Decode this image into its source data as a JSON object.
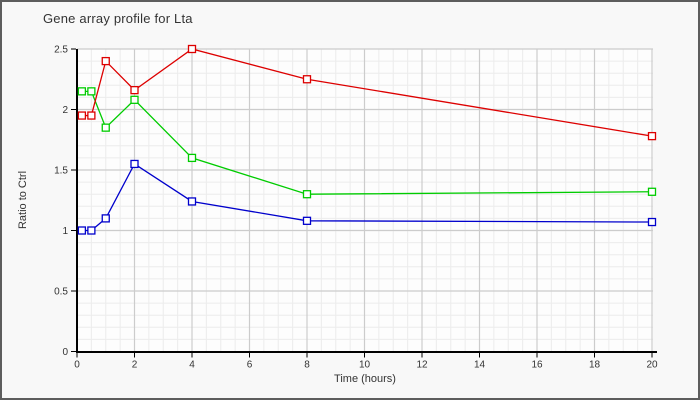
{
  "window": {
    "title": "Gene array profile for Lta"
  },
  "palette": {
    "background": "#f8f8f8",
    "plot_background": "#fdfdfd",
    "frame_border": "#5d5d5d",
    "axis": "#000000",
    "major_grid": "#cccccc",
    "minor_grid": "#ececec",
    "text": "#333333"
  },
  "chart_data": {
    "type": "line",
    "title": "Gene array profile for Lta",
    "xlabel": "Time (hours)",
    "ylabel": "Ratio to Ctrl",
    "xlim": [
      0,
      20
    ],
    "ylim": [
      0,
      2.5
    ],
    "x_ticks": [
      0,
      2,
      4,
      6,
      8,
      10,
      12,
      14,
      16,
      18,
      20
    ],
    "x_tick_labels": [
      "0",
      "2",
      "4",
      "6",
      "8",
      "10",
      "12",
      "14",
      "16",
      "18",
      "20"
    ],
    "y_ticks": [
      0,
      0.5,
      1,
      1.5,
      2,
      2.5
    ],
    "y_tick_labels": [
      "0",
      "0.5",
      "1",
      "1.5",
      "2",
      "2.5"
    ],
    "minor_x_step": 0.5,
    "minor_y_step": 0.1,
    "grid": "on",
    "legend": "none",
    "marker": "open-square",
    "x": [
      0.17,
      0.5,
      1,
      2,
      4,
      8,
      20
    ],
    "series": [
      {
        "name": "green",
        "color": "#00cc00",
        "values": [
          2.15,
          2.15,
          1.85,
          2.08,
          1.6,
          1.3,
          1.32
        ]
      },
      {
        "name": "blue",
        "color": "#0000cc",
        "values": [
          1.0,
          1.0,
          1.1,
          1.55,
          1.24,
          1.08,
          1.07
        ]
      },
      {
        "name": "red",
        "color": "#dd0000",
        "values": [
          1.95,
          1.95,
          2.4,
          2.16,
          2.5,
          2.25,
          1.78
        ]
      }
    ]
  }
}
